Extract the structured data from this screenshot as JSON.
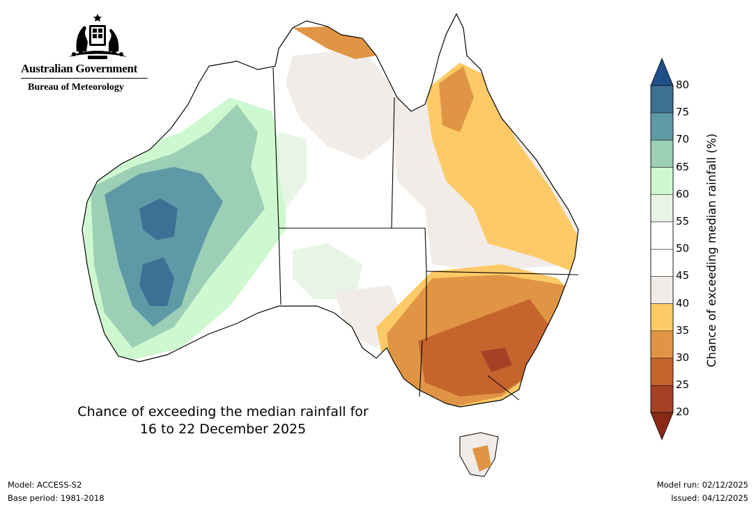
{
  "header": {
    "gov_name": "Australian Government",
    "bureau_name": "Bureau of Meteorology",
    "crest_icon": "coat-of-arms-icon"
  },
  "map": {
    "title_line1": "Chance of exceeding the median rainfall for",
    "title_line2": "16 to 22 December 2025"
  },
  "legend": {
    "title": "Chance of exceeding median rainfall (%)",
    "ticks": [
      "80",
      "75",
      "70",
      "65",
      "60",
      "55",
      "50",
      "45",
      "40",
      "35",
      "30",
      "25",
      "20"
    ],
    "bands": [
      {
        "range": "75-80",
        "color": "#3e6f94"
      },
      {
        "range": "70-75",
        "color": "#5e9aa6"
      },
      {
        "range": "65-70",
        "color": "#9ccfb6"
      },
      {
        "range": "60-65",
        "color": "#cef8cf"
      },
      {
        "range": "55-60",
        "color": "#e8f4e6"
      },
      {
        "range": "50-55",
        "color": "#ffffff"
      },
      {
        "range": "45-50",
        "color": "#ffffff"
      },
      {
        "range": "40-45",
        "color": "#f1ece7"
      },
      {
        "range": "35-40",
        "color": "#fdca67"
      },
      {
        "range": "30-35",
        "color": "#e09544"
      },
      {
        "range": "25-30",
        "color": "#c6642e"
      },
      {
        "range": "20-25",
        "color": "#a54224"
      }
    ],
    "top_arrow_color": "#1f4f86",
    "bottom_arrow_color": "#8a2a15"
  },
  "footer": {
    "model": "Model: ACCESS-S2",
    "base_period": "Base period: 1981-2018",
    "model_run": "Model run: 02/12/2025",
    "issued": "Issued: 04/12/2025"
  }
}
